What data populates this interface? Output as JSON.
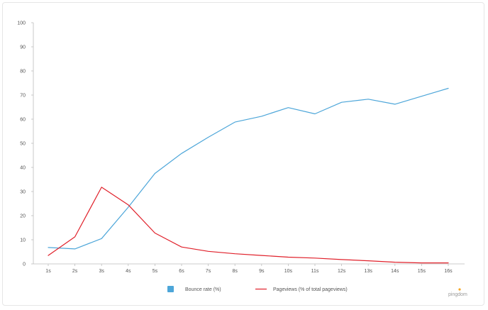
{
  "chart_data": {
    "type": "line",
    "title": "",
    "xlabel": "",
    "ylabel": "",
    "categories": [
      "1s",
      "2s",
      "3s",
      "4s",
      "5s",
      "6s",
      "7s",
      "8s",
      "9s",
      "10s",
      "11s",
      "12s",
      "13s",
      "14s",
      "15s",
      "16s"
    ],
    "ylim": [
      0,
      100
    ],
    "yticks": [
      0,
      10,
      20,
      30,
      40,
      50,
      60,
      70,
      80,
      90,
      100
    ],
    "grid": false,
    "legend_placement": "bottom",
    "series": [
      {
        "name": "Bounce rate  (%)",
        "color": "#4da6d9",
        "legend_marker": "square",
        "values": [
          6.8,
          6.2,
          10.5,
          23.5,
          37.5,
          45.8,
          52.5,
          58.8,
          61.2,
          64.8,
          62.2,
          67.0,
          68.3,
          66.2,
          69.5,
          72.8
        ]
      },
      {
        "name": "Pageviews (% of total pageviews)",
        "color": "#e0202a",
        "legend_marker": "line",
        "values": [
          3.5,
          11.2,
          31.8,
          24.5,
          12.8,
          7.0,
          5.2,
          4.2,
          3.5,
          2.8,
          2.4,
          1.8,
          1.3,
          0.7,
          0.4,
          0.4
        ]
      }
    ]
  },
  "branding": {
    "logo_text": "pingdom",
    "accent_color": "#f5a623"
  }
}
